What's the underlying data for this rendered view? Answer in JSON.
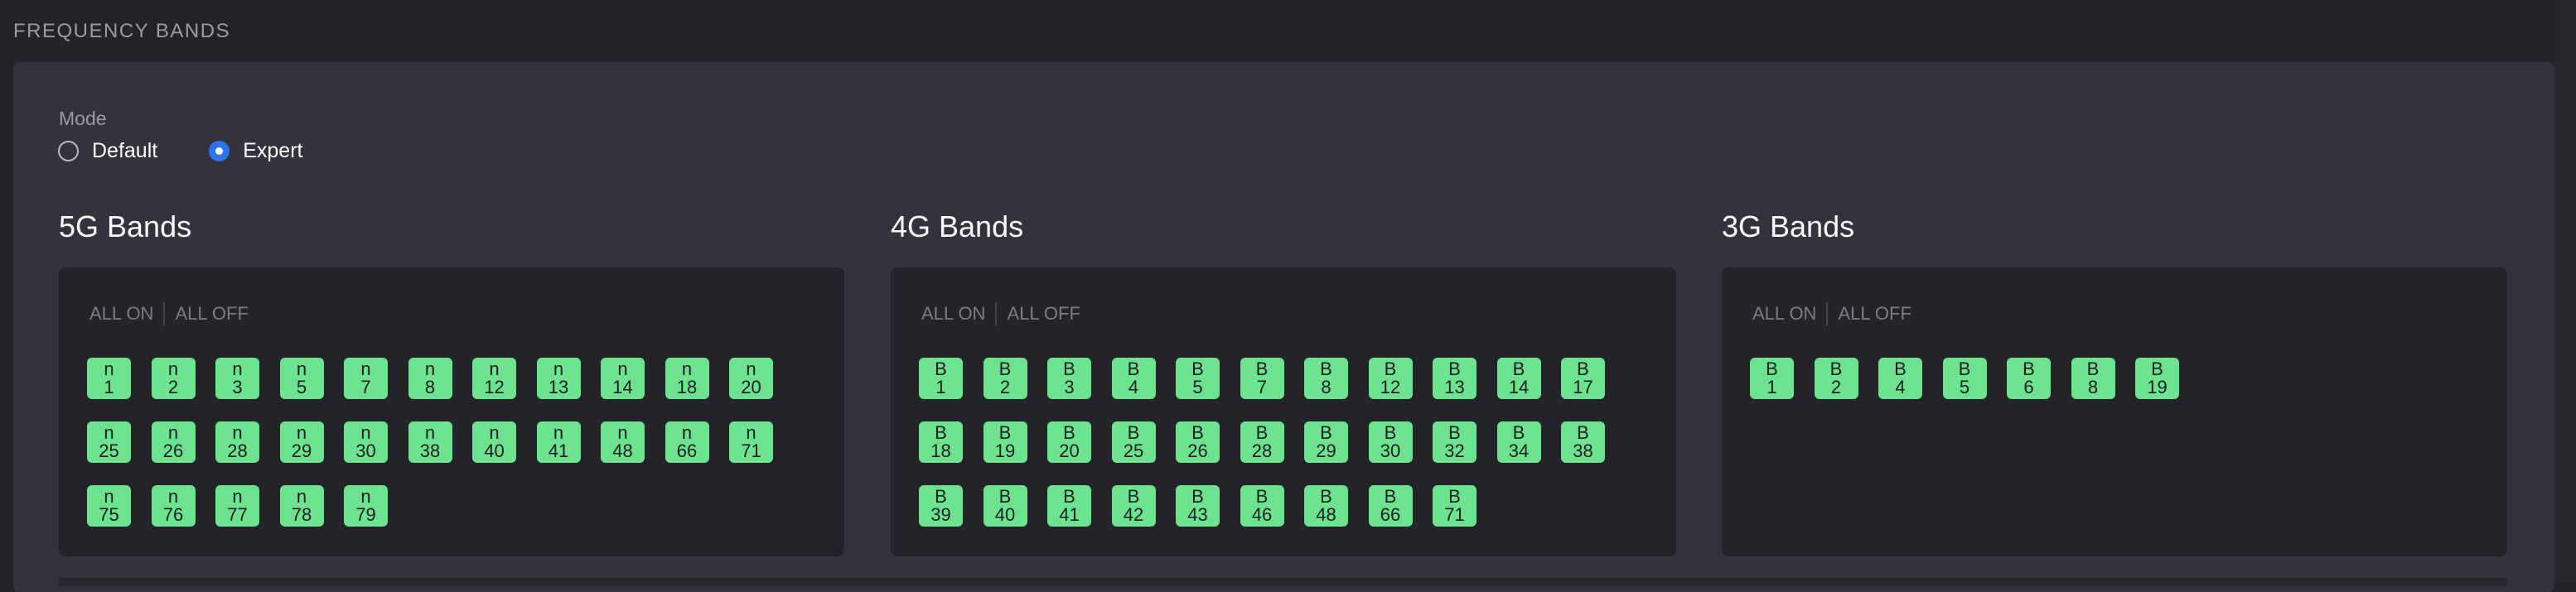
{
  "section_title": "FREQUENCY BANDS",
  "mode": {
    "label": "Mode",
    "options": [
      {
        "label": "Default",
        "selected": false
      },
      {
        "label": "Expert",
        "selected": true
      }
    ]
  },
  "colors": {
    "chip_on": "#6ee38f",
    "radio_selected": "#2f73ea",
    "panel": "#32333c",
    "background": "#232429"
  },
  "groups": [
    {
      "title": "5G Bands",
      "all_on": "ALL ON",
      "all_off": "ALL OFF",
      "prefix": "n",
      "bands": [
        "1",
        "2",
        "3",
        "5",
        "7",
        "8",
        "12",
        "13",
        "14",
        "18",
        "20",
        "25",
        "26",
        "28",
        "29",
        "30",
        "38",
        "40",
        "41",
        "48",
        "66",
        "71",
        "75",
        "76",
        "77",
        "78",
        "79"
      ]
    },
    {
      "title": "4G Bands",
      "all_on": "ALL ON",
      "all_off": "ALL OFF",
      "prefix": "B",
      "bands": [
        "1",
        "2",
        "3",
        "4",
        "5",
        "7",
        "8",
        "12",
        "13",
        "14",
        "17",
        "18",
        "19",
        "20",
        "25",
        "26",
        "28",
        "29",
        "30",
        "32",
        "34",
        "38",
        "39",
        "40",
        "41",
        "42",
        "43",
        "46",
        "48",
        "66",
        "71"
      ]
    },
    {
      "title": "3G Bands",
      "all_on": "ALL ON",
      "all_off": "ALL OFF",
      "prefix": "B",
      "bands": [
        "1",
        "2",
        "4",
        "5",
        "6",
        "8",
        "19"
      ]
    }
  ]
}
